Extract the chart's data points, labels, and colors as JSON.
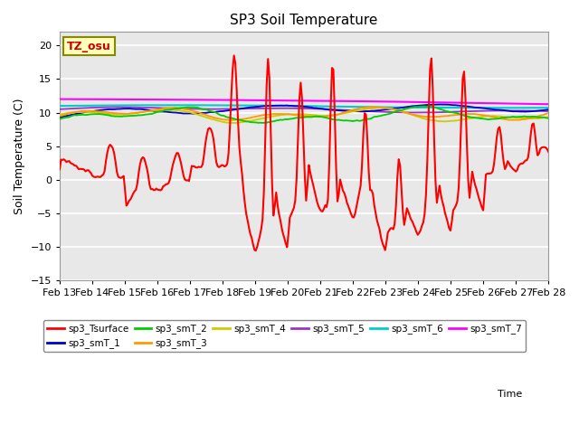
{
  "title": "SP3 Soil Temperature",
  "ylabel": "Soil Temperature (C)",
  "ylim": [
    -15,
    22
  ],
  "yticks": [
    -15,
    -10,
    -5,
    0,
    5,
    10,
    15,
    20
  ],
  "x_labels": [
    "Feb 13",
    "Feb 14",
    "Feb 15",
    "Feb 16",
    "Feb 17",
    "Feb 18",
    "Feb 19",
    "Feb 20",
    "Feb 21",
    "Feb 22",
    "Feb 23",
    "Feb 24",
    "Feb 25",
    "Feb 26",
    "Feb 27",
    "Feb 28"
  ],
  "tz_label": "TZ_osu",
  "legend_entries": [
    {
      "label": "sp3_Tsurface",
      "color": "#ff0000"
    },
    {
      "label": "sp3_smT_1",
      "color": "#0000cc"
    },
    {
      "label": "sp3_smT_2",
      "color": "#00cc00"
    },
    {
      "label": "sp3_smT_3",
      "color": "#ff9900"
    },
    {
      "label": "sp3_smT_4",
      "color": "#cccc00"
    },
    {
      "label": "sp3_smT_5",
      "color": "#9933cc"
    },
    {
      "label": "sp3_smT_6",
      "color": "#00cccc"
    },
    {
      "label": "sp3_smT_7",
      "color": "#ff00ff"
    }
  ],
  "background_color": "#ffffff",
  "plot_bg_color": "#e8e8e8",
  "grid_color": "#ffffff",
  "xlabel_text": "Time"
}
